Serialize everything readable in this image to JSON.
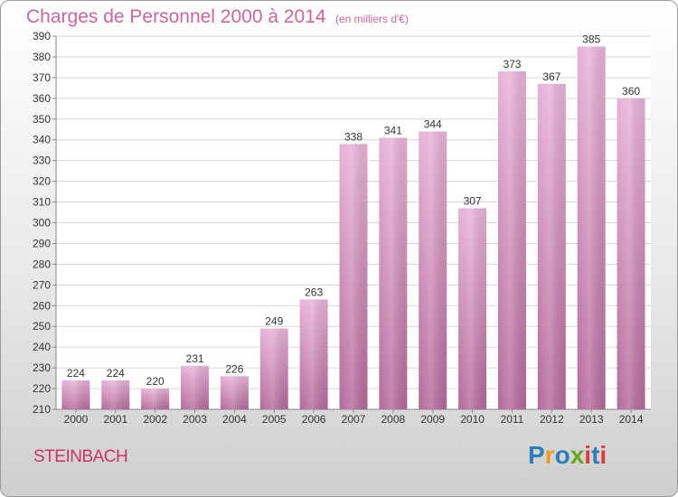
{
  "title": "Charges de Personnel 2000 à 2014",
  "subtitle": "(en milliers d'€)",
  "city": "STEINBACH",
  "logo": {
    "text": "Proxiti",
    "letters": [
      "P",
      "r",
      "o",
      "x",
      "i",
      "t",
      "i"
    ],
    "colors": [
      "#2c7fb8",
      "#f29a1d",
      "#2c7fb8",
      "#6aa91c",
      "#e23a3a",
      "#2c7fb8",
      "#e23a3a"
    ]
  },
  "colors": {
    "bar_light": "#e8b2d6",
    "bar_dark": "#b46a9a",
    "text": "#cc6699"
  },
  "chart_data": {
    "type": "bar",
    "title": "Charges de Personnel 2000 à 2014",
    "ylabel": "(en milliers d'€)",
    "xlabel": "",
    "categories": [
      "2000",
      "2001",
      "2002",
      "2003",
      "2004",
      "2005",
      "2006",
      "2007",
      "2008",
      "2009",
      "2010",
      "2011",
      "2012",
      "2013",
      "2014"
    ],
    "values": [
      224,
      224,
      220,
      231,
      226,
      249,
      263,
      338,
      341,
      344,
      307,
      373,
      367,
      385,
      360
    ],
    "ylim": [
      210,
      390
    ],
    "yticks": [
      210,
      220,
      230,
      240,
      250,
      260,
      270,
      280,
      290,
      300,
      310,
      320,
      330,
      340,
      350,
      360,
      370,
      380,
      390
    ],
    "grid": true
  }
}
